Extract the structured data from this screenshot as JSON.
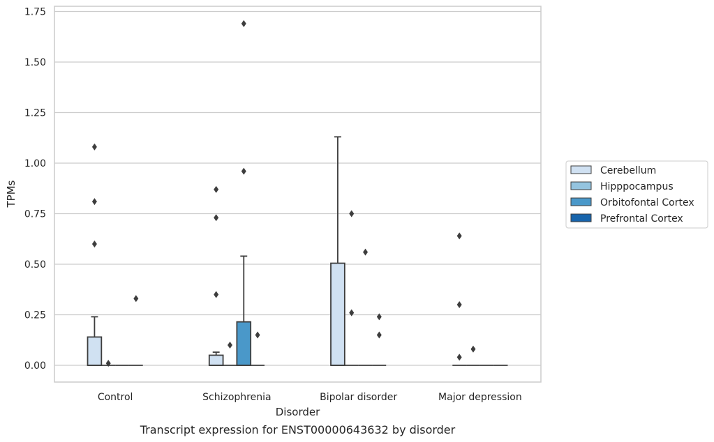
{
  "chart_data": {
    "type": "box",
    "title": "",
    "caption": "Transcript expression for ENST00000643632 by disorder",
    "xlabel": "Disorder",
    "ylabel": "TPMs",
    "ylim": [
      -0.08,
      1.77
    ],
    "yticks": [
      0.0,
      0.25,
      0.5,
      0.75,
      1.0,
      1.25,
      1.5,
      1.75
    ],
    "ytick_labels": [
      "0.00",
      "0.25",
      "0.50",
      "0.75",
      "1.00",
      "1.25",
      "1.50",
      "1.75"
    ],
    "categories": [
      "Control",
      "Schizophrenia",
      "Bipolar disorder",
      "Major depression"
    ],
    "grid": "horizontal",
    "legend_position": "right",
    "series": [
      {
        "name": "Cerebellum",
        "color": "#d0e1f2",
        "boxes": [
          {
            "q1": 0.0,
            "median": 0.0,
            "q3": 0.14,
            "whisker_low": 0.0,
            "whisker_high": 0.24,
            "outliers": [
              0.6,
              0.81,
              1.08
            ]
          },
          {
            "q1": 0.0,
            "median": 0.0,
            "q3": 0.05,
            "whisker_low": 0.0,
            "whisker_high": 0.065,
            "outliers": [
              0.35,
              0.73,
              0.87
            ]
          },
          {
            "q1": 0.0,
            "median": 0.0,
            "q3": 0.505,
            "whisker_low": 0.0,
            "whisker_high": 1.13,
            "outliers": []
          },
          {
            "q1": 0.0,
            "median": 0.0,
            "q3": 0.0,
            "whisker_low": 0.0,
            "whisker_high": 0.0,
            "outliers": [
              0.04,
              0.3,
              0.64
            ]
          }
        ]
      },
      {
        "name": "Hipppocampus",
        "color": "#94c4df",
        "boxes": [
          {
            "q1": 0.0,
            "median": 0.0,
            "q3": 0.0,
            "whisker_low": 0.0,
            "whisker_high": 0.0,
            "outliers": [
              0.01
            ]
          },
          {
            "q1": 0.0,
            "median": 0.0,
            "q3": 0.0,
            "whisker_low": 0.0,
            "whisker_high": 0.0,
            "outliers": [
              0.1
            ]
          },
          {
            "q1": 0.0,
            "median": 0.0,
            "q3": 0.0,
            "whisker_low": 0.0,
            "whisker_high": 0.0,
            "outliers": [
              0.26,
              0.75
            ]
          },
          {
            "q1": 0.0,
            "median": 0.0,
            "q3": 0.0,
            "whisker_low": 0.0,
            "whisker_high": 0.0,
            "outliers": [
              0.08
            ]
          }
        ]
      },
      {
        "name": "Orbitofontal Cortex",
        "color": "#4a98c9",
        "boxes": [
          {
            "q1": 0.0,
            "median": 0.0,
            "q3": 0.0,
            "whisker_low": 0.0,
            "whisker_high": 0.0,
            "outliers": []
          },
          {
            "q1": 0.0,
            "median": 0.0,
            "q3": 0.215,
            "whisker_low": 0.0,
            "whisker_high": 0.54,
            "outliers": [
              0.96,
              1.69
            ]
          },
          {
            "q1": 0.0,
            "median": 0.0,
            "q3": 0.0,
            "whisker_low": 0.0,
            "whisker_high": 0.0,
            "outliers": [
              0.56
            ]
          },
          {
            "q1": 0.0,
            "median": 0.0,
            "q3": 0.0,
            "whisker_low": 0.0,
            "whisker_high": 0.0,
            "outliers": []
          }
        ]
      },
      {
        "name": "Prefrontal Cortex",
        "color": "#1764ab",
        "boxes": [
          {
            "q1": 0.0,
            "median": 0.0,
            "q3": 0.0,
            "whisker_low": 0.0,
            "whisker_high": 0.0,
            "outliers": [
              0.33
            ]
          },
          {
            "q1": 0.0,
            "median": 0.0,
            "q3": 0.0,
            "whisker_low": 0.0,
            "whisker_high": 0.0,
            "outliers": [
              0.15
            ]
          },
          {
            "q1": 0.0,
            "median": 0.0,
            "q3": 0.0,
            "whisker_low": 0.0,
            "whisker_high": 0.0,
            "outliers": [
              0.15,
              0.24
            ]
          },
          {
            "q1": 0.0,
            "median": 0.0,
            "q3": 0.0,
            "whisker_low": 0.0,
            "whisker_high": 0.0,
            "outliers": []
          }
        ]
      }
    ]
  }
}
